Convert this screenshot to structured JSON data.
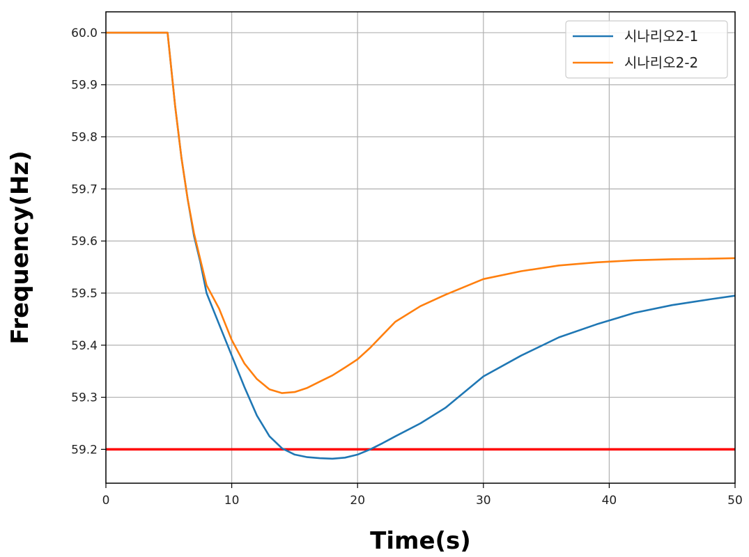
{
  "chart_data": {
    "type": "line",
    "xlabel": "Time(s)",
    "ylabel": "Frequency(Hz)",
    "xlim": [
      0,
      50
    ],
    "ylim": [
      59.135,
      60.04
    ],
    "xticks": [
      0,
      10,
      20,
      30,
      40,
      50
    ],
    "xtick_labels": [
      "0",
      "10",
      "20",
      "30",
      "40",
      "50"
    ],
    "yticks": [
      59.2,
      59.3,
      59.4,
      59.5,
      59.6,
      59.7,
      59.8,
      59.9,
      60.0
    ],
    "ytick_labels": [
      "59.2",
      "59.3",
      "59.4",
      "59.5",
      "59.6",
      "59.7",
      "59.8",
      "59.9",
      "60.0"
    ],
    "grid": true,
    "legend_position": "top-right",
    "series": [
      {
        "name": "시나리오2-1",
        "color": "#1f77b4",
        "x": [
          0,
          4.9,
          5.5,
          6,
          6.5,
          7,
          7.5,
          8,
          9,
          10,
          11,
          12,
          13,
          14,
          15,
          16,
          17,
          18,
          19,
          20,
          21,
          22,
          23,
          25,
          27,
          30,
          33,
          36,
          39,
          42,
          45,
          48,
          50
        ],
        "y": [
          60.0,
          60.0,
          59.86,
          59.76,
          59.68,
          59.61,
          59.56,
          59.5,
          59.44,
          59.38,
          59.32,
          59.265,
          59.225,
          59.202,
          59.19,
          59.185,
          59.183,
          59.182,
          59.184,
          59.19,
          59.2,
          59.212,
          59.225,
          59.25,
          59.28,
          59.34,
          59.38,
          59.415,
          59.44,
          59.462,
          59.477,
          59.488,
          59.495
        ]
      },
      {
        "name": "시나리오2-2",
        "color": "#ff7f0e",
        "x": [
          0,
          4.9,
          5.5,
          6,
          6.5,
          7,
          7.5,
          8,
          9,
          10,
          11,
          12,
          13,
          14,
          15,
          16,
          17,
          18,
          19,
          20,
          21,
          22,
          23,
          25,
          27,
          30,
          33,
          36,
          39,
          42,
          45,
          48,
          50
        ],
        "y": [
          60.0,
          60.0,
          59.86,
          59.76,
          59.68,
          59.615,
          59.565,
          59.515,
          59.47,
          59.41,
          59.365,
          59.335,
          59.315,
          59.308,
          59.31,
          59.318,
          59.33,
          59.342,
          59.357,
          59.373,
          59.395,
          59.42,
          59.445,
          59.475,
          59.497,
          59.527,
          59.542,
          59.553,
          59.559,
          59.563,
          59.565,
          59.566,
          59.567
        ]
      }
    ],
    "reference_lines": [
      {
        "y": 59.2,
        "color": "#ff0000"
      }
    ]
  }
}
